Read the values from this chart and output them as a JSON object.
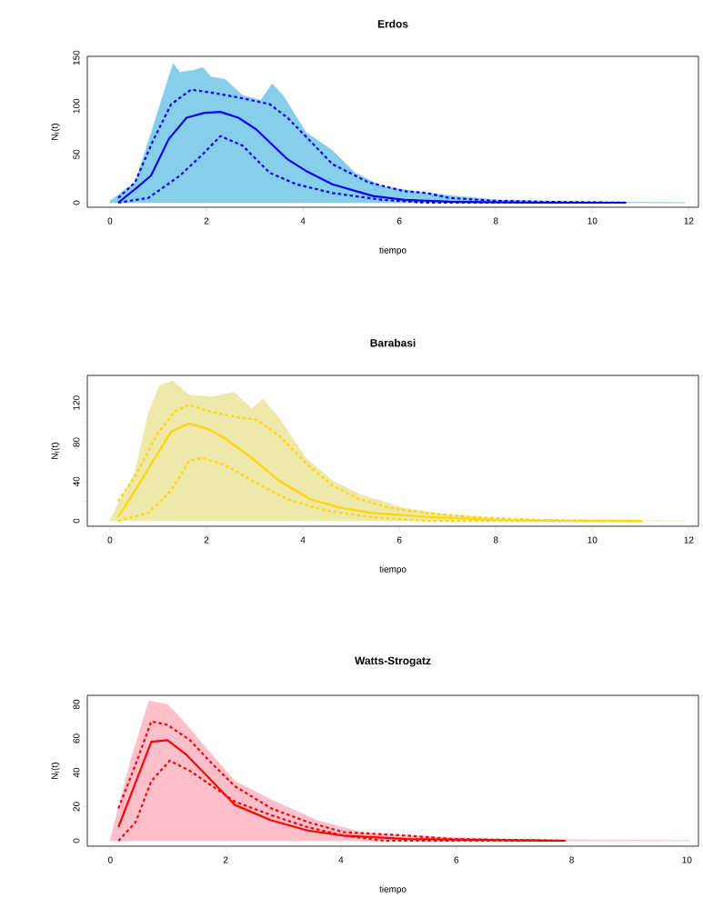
{
  "chart_data": [
    {
      "type": "line",
      "title": "Erdos",
      "xlabel": "tiempo",
      "ylabel": "N$_{I}$(t)",
      "xlim": [
        -0.47,
        12.2
      ],
      "ylim": [
        -4.7,
        151.5
      ],
      "xticks": [
        0,
        2,
        4,
        6,
        8,
        10,
        12
      ],
      "yticks": [
        0,
        50,
        100,
        150
      ],
      "series": [
        {
          "type": "area",
          "color": "#87ceeb",
          "x": [
            0,
            0.52,
            0.8,
            1.13,
            1.31,
            1.45,
            1.73,
            1.92,
            2.1,
            2.38,
            2.75,
            3.13,
            3.36,
            3.59,
            4.06,
            4.61,
            5.08,
            5.64,
            6.57,
            7.96,
            9.82,
            11.92
          ],
          "values": [
            2,
            21,
            64,
            116,
            144,
            135,
            137,
            140,
            130,
            128,
            111,
            106,
            123,
            111,
            73,
            54,
            31,
            17,
            10,
            3,
            1,
            0
          ]
        },
        {
          "type": "line",
          "color": "#0000ff",
          "line_style": "dashed",
          "x": [
            0.17,
            0.52,
            0.89,
            1.27,
            1.68,
            2.1,
            2.66,
            3.31,
            3.68,
            4.15,
            4.61,
            5.36,
            6.1,
            6.57,
            7.03,
            7.96,
            8.9,
            10.7
          ],
          "values": [
            5,
            21,
            64,
            102,
            117,
            114,
            109,
            102,
            88,
            64,
            40,
            21,
            12,
            10,
            5,
            2,
            1,
            0
          ]
        },
        {
          "type": "line",
          "color": "#0000ff",
          "line_style": "solid",
          "x": [
            0.17,
            0.52,
            0.85,
            1.22,
            1.59,
            1.96,
            2.29,
            2.66,
            3.03,
            3.68,
            4.06,
            4.61,
            5.45,
            6.1,
            7.03,
            8.9,
            10.7
          ],
          "values": [
            0,
            14,
            28,
            66,
            88,
            93,
            94,
            88,
            76,
            45,
            33,
            19,
            7,
            3,
            1,
            0,
            0
          ]
        },
        {
          "type": "line",
          "color": "#0000ff",
          "line_style": "dashed",
          "x": [
            0.17,
            0.8,
            1.45,
            1.92,
            2.29,
            2.75,
            3.31,
            3.87,
            4.61,
            5.64,
            6.57,
            10.7
          ],
          "values": [
            0,
            5,
            28,
            50,
            69,
            59,
            31,
            19,
            10,
            3,
            0,
            0
          ]
        }
      ]
    },
    {
      "type": "line",
      "title": "Barabasi",
      "xlabel": "tiempo",
      "ylabel": "N$_{I}$(t)",
      "xlim": [
        -0.47,
        12.2
      ],
      "ylim": [
        -5.5,
        148
      ],
      "xticks": [
        0,
        2,
        4,
        6,
        8,
        10,
        12
      ],
      "yticks": [
        0,
        {
          "value": 20,
          "label": null
        },
        40,
        {
          "value": 60,
          "label": null
        },
        80,
        {
          "value": 100,
          "label": null
        },
        120,
        {
          "value": 140,
          "label": null
        }
      ],
      "series": [
        {
          "type": "area",
          "color": "#eee8aa",
          "x": [
            0,
            0.52,
            0.8,
            1.03,
            1.31,
            1.64,
            2.1,
            2.57,
            2.94,
            3.17,
            3.5,
            4.06,
            4.61,
            5.17,
            6.1,
            7.03,
            8.43,
            11.92
          ],
          "values": [
            1,
            50,
            110,
            138,
            142,
            128,
            126,
            131,
            114,
            124,
            105,
            64,
            41,
            27,
            13,
            6,
            1,
            0
          ]
        },
        {
          "type": "line",
          "color": "#ffd700",
          "line_style": "dashed",
          "x": [
            0.17,
            0.52,
            0.99,
            1.36,
            1.64,
            2.01,
            2.57,
            3.03,
            3.5,
            4.06,
            4.61,
            5.17,
            5.82,
            6.57,
            7.5,
            8.9,
            11.03
          ],
          "values": [
            20,
            45,
            89,
            112,
            118,
            112,
            106,
            103,
            87,
            59,
            36,
            22,
            13,
            8,
            4,
            1,
            0
          ]
        },
        {
          "type": "line",
          "color": "#ffd700",
          "line_style": "solid",
          "x": [
            0.17,
            0.52,
            1.27,
            1.64,
            2.01,
            2.38,
            2.94,
            3.5,
            4.15,
            4.8,
            5.45,
            6.57,
            7.96,
            9.92,
            11.03
          ],
          "values": [
            4,
            31,
            91,
            99,
            94,
            84,
            64,
            41,
            22,
            13,
            8,
            4,
            1,
            0,
            0
          ]
        },
        {
          "type": "line",
          "color": "#ffd700",
          "line_style": "dashed",
          "x": [
            0.17,
            0.8,
            1.27,
            1.64,
            1.92,
            2.38,
            2.94,
            3.68,
            4.43,
            5.36,
            6.57,
            11.03
          ],
          "values": [
            0,
            8,
            31,
            61,
            64,
            57,
            41,
            22,
            11,
            4,
            0,
            0
          ]
        }
      ]
    },
    {
      "type": "line",
      "title": "Watts-Strogatz",
      "xlabel": "tiempo",
      "ylabel": "N$_{I}$(t)",
      "xlim": [
        -0.4,
        10.2
      ],
      "ylim": [
        -3.2,
        85.3
      ],
      "xticks": [
        0,
        2,
        4,
        6,
        8,
        10
      ],
      "yticks": [
        0,
        20,
        40,
        60,
        80
      ],
      "series": [
        {
          "type": "area",
          "color": "#ffc0cb",
          "x": [
            0,
            0.36,
            0.67,
            0.99,
            1.22,
            1.62,
            2.16,
            2.79,
            3.58,
            4.36,
            5.15,
            6.71,
            10.05
          ],
          "values": [
            1,
            48,
            82,
            80,
            72,
            56,
            35,
            24,
            12,
            5,
            3,
            1,
            0
          ]
        },
        {
          "type": "line",
          "color": "#ff0000",
          "line_style": "dashed",
          "x": [
            0.14,
            0.44,
            0.71,
            0.99,
            1.38,
            1.77,
            2.16,
            2.79,
            3.42,
            4.05,
            5.15,
            5.93,
            7.89
          ],
          "values": [
            19,
            45,
            70,
            68,
            59,
            45,
            32,
            19,
            11,
            5,
            3,
            1,
            0
          ]
        },
        {
          "type": "line",
          "color": "#ff0000",
          "line_style": "solid",
          "x": [
            0.14,
            0.71,
            0.99,
            1.3,
            1.62,
            2.16,
            2.79,
            3.42,
            4.05,
            5.15,
            7.89
          ],
          "values": [
            8,
            58,
            59,
            51,
            40,
            21,
            12,
            6,
            3,
            1,
            0
          ]
        },
        {
          "type": "line",
          "color": "#ff0000",
          "line_style": "dashed",
          "x": [
            0.14,
            0.44,
            0.71,
            1.03,
            1.38,
            1.77,
            2.16,
            2.79,
            3.42,
            4.05,
            4.75,
            7.89
          ],
          "values": [
            0,
            11,
            35,
            47,
            41,
            32,
            23,
            15,
            8,
            3,
            0,
            0
          ]
        }
      ]
    }
  ]
}
